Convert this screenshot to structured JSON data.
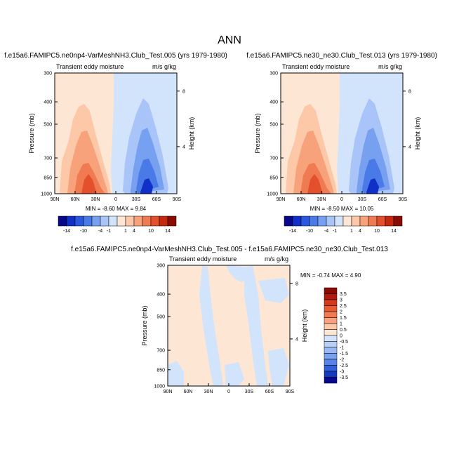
{
  "figure": {
    "title": "ANN"
  },
  "panels": [
    {
      "id": "top-left",
      "case_title": "f.e15a6.FAMIPC5.ne0np4-VarMeshNH3.Club_Test.005 (yrs 1979-1980)",
      "left_label": "Transient eddy moisture",
      "right_label": "m/s g/kg",
      "stats": "MIN =  -8.60  MAX =   9.84"
    },
    {
      "id": "top-right",
      "case_title": "f.e15a6.FAMIPC5.ne30_ne30.Club_Test.013 (yrs 1979-1980)",
      "left_label": "Transient eddy moisture",
      "right_label": "m/s g/kg",
      "stats": "MIN =  -8.50  MAX =  10.05"
    },
    {
      "id": "bottom",
      "case_title": "f.e15a6.FAMIPC5.ne0np4-VarMeshNH3.Club_Test.005 - f.e15a6.FAMIPC5.ne30_ne30.Club_Test.013",
      "left_label": "Transient eddy moisture",
      "right_label": "m/s g/kg",
      "stats": "MIN =  -0.74  MAX =   4.90"
    }
  ],
  "axes": {
    "ylabel": "Pressure (mb)",
    "y2label": "Height (km)",
    "yticks": [
      "300",
      "400",
      "500",
      "700",
      "850",
      "1000"
    ],
    "ytick_values": [
      300,
      400,
      500,
      700,
      850,
      1000
    ],
    "y2ticks": [
      "8",
      "4"
    ],
    "y2tick_values": [
      8,
      4
    ],
    "xticks": [
      "90N",
      "60N",
      "30N",
      "0",
      "30S",
      "60S",
      "90S"
    ],
    "xtick_values": [
      90,
      60,
      30,
      0,
      -30,
      -60,
      -90
    ]
  },
  "colorbars": {
    "main": {
      "labels": [
        "-14",
        "-10",
        "-4",
        "-1",
        "1",
        "4",
        "10",
        "14"
      ],
      "colors": [
        "#08088a",
        "#1030c8",
        "#2858e0",
        "#4a7ae8",
        "#78a0f0",
        "#a8c4f8",
        "#d2e4fc",
        "#fde6d4",
        "#fcc8a8",
        "#f7a27a",
        "#f07a52",
        "#e4502c",
        "#c52810",
        "#8a0a04"
      ]
    },
    "diff": {
      "labels": [
        "3.5",
        "3",
        "2.5",
        "2",
        "1.5",
        "1",
        "0.5",
        "0",
        "-0.5",
        "-1",
        "-1.5",
        "-2",
        "-2.5",
        "-3",
        "-3.5"
      ],
      "colors": [
        "#8a0a04",
        "#b01a0c",
        "#d43a1a",
        "#e85a30",
        "#f27a52",
        "#f9a07c",
        "#fcc8a8",
        "#fde6d4",
        "#d2e4fc",
        "#b8d0f8",
        "#98b8f4",
        "#7aa0f0",
        "#5882e8",
        "#3060dc",
        "#1438c0",
        "#08088a"
      ]
    }
  },
  "chart_data": [
    {
      "type": "heatmap",
      "title": "f.e15a6.FAMIPC5.ne0np4-VarMeshNH3.Club_Test.005 (yrs 1979-1980)",
      "xlabel": "",
      "ylabel": "Pressure (mb)",
      "x_range": [
        "90N",
        "90S"
      ],
      "y_range": [
        300,
        1000
      ],
      "min": -8.6,
      "max": 9.84,
      "features": [
        {
          "sign": "positive",
          "max_level": 10,
          "center_lat": 35,
          "base_pressure": 1000,
          "top_pressure": 300
        },
        {
          "sign": "negative",
          "max_level": -10,
          "center_lat": -35,
          "base_pressure": 1000,
          "top_pressure": 300
        }
      ]
    },
    {
      "type": "heatmap",
      "title": "f.e15a6.FAMIPC5.ne30_ne30.Club_Test.013 (yrs 1979-1980)",
      "xlabel": "",
      "ylabel": "Pressure (mb)",
      "x_range": [
        "90N",
        "90S"
      ],
      "y_range": [
        300,
        1000
      ],
      "min": -8.5,
      "max": 10.05,
      "features": [
        {
          "sign": "positive",
          "max_level": 10,
          "center_lat": 35,
          "base_pressure": 1000,
          "top_pressure": 300
        },
        {
          "sign": "negative",
          "max_level": -10,
          "center_lat": -35,
          "base_pressure": 1000,
          "top_pressure": 300
        }
      ]
    },
    {
      "type": "heatmap",
      "title": "f.e15a6.FAMIPC5.ne0np4-VarMeshNH3.Club_Test.005 - f.e15a6.FAMIPC5.ne30_ne30.Club_Test.013",
      "xlabel": "",
      "ylabel": "Pressure (mb)",
      "x_range": [
        "90N",
        "90S"
      ],
      "y_range": [
        300,
        1000
      ],
      "min": -0.74,
      "max": 4.9,
      "dominant_levels": [
        0,
        0.5,
        -0.5
      ]
    }
  ]
}
